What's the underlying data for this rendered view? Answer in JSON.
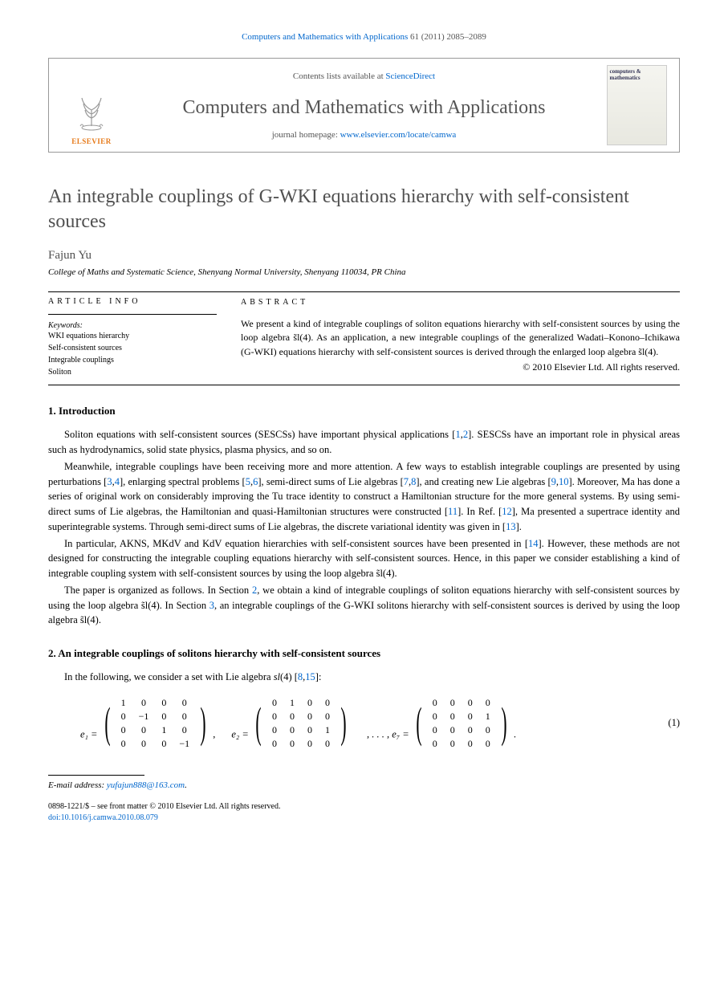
{
  "journal_ref": {
    "journal_link": "Computers and Mathematics with Applications",
    "vol_pages": "61 (2011) 2085–2089"
  },
  "header": {
    "contents_text": "Contents lists available at ",
    "contents_link": "ScienceDirect",
    "journal_title": "Computers and Mathematics with Applications",
    "homepage_text": "journal homepage: ",
    "homepage_link": "www.elsevier.com/locate/camwa",
    "elsevier": "ELSEVIER",
    "cover_title": "computers & mathematics"
  },
  "article": {
    "title": "An integrable couplings of G-WKI equations hierarchy with self-consistent sources",
    "author": "Fajun Yu",
    "affiliation": "College of Maths and Systematic Science, Shenyang Normal University, Shenyang 110034, PR China"
  },
  "info": {
    "heading": "article info",
    "keywords_label": "Keywords:",
    "keywords": [
      "WKI equations hierarchy",
      "Self-consistent sources",
      "Integrable couplings",
      "Soliton"
    ]
  },
  "abstract": {
    "heading": "abstract",
    "text": "We present a kind of integrable couplings of soliton equations hierarchy with self-consistent sources by using the loop algebra s̃l(4). As an application, a new integrable couplings of the generalized Wadati–Konono–Ichikawa (G-WKI) equations hierarchy with self-consistent sources is derived through the enlarged loop algebra s̃l(4).",
    "copyright": "© 2010 Elsevier Ltd. All rights reserved."
  },
  "sections": {
    "s1_heading": "1. Introduction",
    "s1_p1a": "Soliton equations with self-consistent sources (SESCSs) have important physical applications [",
    "s1_p1_r1": "1",
    "s1_p1b": ",",
    "s1_p1_r2": "2",
    "s1_p1c": "]. SESCSs have an important role in physical areas such as hydrodynamics, solid state physics, plasma physics, and so on.",
    "s1_p2a": "Meanwhile, integrable couplings have been receiving more and more attention. A few ways to establish integrable couplings are presented by using perturbations [",
    "s1_p2_r3": "3",
    "s1_p2b": ",",
    "s1_p2_r4": "4",
    "s1_p2c": "], enlarging spectral problems [",
    "s1_p2_r5": "5",
    "s1_p2d": ",",
    "s1_p2_r6": "6",
    "s1_p2e": "], semi-direct sums of Lie algebras [",
    "s1_p2_r7": "7",
    "s1_p2f": ",",
    "s1_p2_r8": "8",
    "s1_p2g": "], and creating new Lie algebras [",
    "s1_p2_r9": "9",
    "s1_p2h": ",",
    "s1_p2_r10": "10",
    "s1_p2i": "]. Moreover, Ma has done a series of original work on considerably improving the Tu trace identity to construct a Hamiltonian structure for the more general systems. By using semi-direct sums of Lie algebras, the Hamiltonian and quasi-Hamiltonian structures were constructed [",
    "s1_p2_r11": "11",
    "s1_p2j": "]. In Ref. [",
    "s1_p2_r12": "12",
    "s1_p2k": "], Ma presented a supertrace identity and superintegrable systems. Through semi-direct sums of Lie algebras, the discrete variational identity was given in [",
    "s1_p2_r13": "13",
    "s1_p2l": "].",
    "s1_p3a": "In particular, AKNS, MKdV and KdV equation hierarchies with self-consistent sources have been presented in [",
    "s1_p3_r14": "14",
    "s1_p3b": "]. However, these methods are not designed for constructing the integrable coupling equations hierarchy with self-consistent sources. Hence, in this paper we consider establishing a kind of integrable coupling system with self-consistent sources by using the loop algebra s̃l(4).",
    "s1_p4a": "The paper is organized as follows. In Section ",
    "s1_p4_sec2": "2",
    "s1_p4b": ", we obtain a kind of integrable couplings of soliton equations hierarchy with self-consistent sources by using the loop algebra s̃l(4). In Section ",
    "s1_p4_sec3": "3",
    "s1_p4c": ", an integrable couplings of the G-WKI solitons hierarchy with self-consistent sources is derived by using the loop algebra s̃l(4).",
    "s2_heading": "2. An integrable couplings of solitons hierarchy with self-consistent sources",
    "s2_p1a": "In the following, we consider a set with Lie algebra ",
    "s2_p1_alg": "sl",
    "s2_p1b": "(4) [",
    "s2_p1_r8": "8",
    "s2_p1c": ",",
    "s2_p1_r15": "15",
    "s2_p1d": "]:"
  },
  "equation": {
    "e1_label": "e₁ =",
    "e2_label": "e₂ =",
    "e7_label": ", . . . , e₇ =",
    "num": "(1)",
    "matrices": {
      "e1": [
        [
          "1",
          "0",
          "0",
          "0"
        ],
        [
          "0",
          "−1",
          "0",
          "0"
        ],
        [
          "0",
          "0",
          "1",
          "0"
        ],
        [
          "0",
          "0",
          "0",
          "−1"
        ]
      ],
      "e2": [
        [
          "0",
          "1",
          "0",
          "0"
        ],
        [
          "0",
          "0",
          "0",
          "0"
        ],
        [
          "0",
          "0",
          "0",
          "1"
        ],
        [
          "0",
          "0",
          "0",
          "0"
        ]
      ],
      "e7": [
        [
          "0",
          "0",
          "0",
          "0"
        ],
        [
          "0",
          "0",
          "0",
          "1"
        ],
        [
          "0",
          "0",
          "0",
          "0"
        ],
        [
          "0",
          "0",
          "0",
          "0"
        ]
      ]
    },
    "comma": ",",
    "period": "."
  },
  "footer": {
    "email_label": "E-mail address: ",
    "email": "yufajun888@163.com",
    "email_period": ".",
    "issn_line": "0898-1221/$ – see front matter © 2010 Elsevier Ltd. All rights reserved.",
    "doi_label": "doi:",
    "doi": "10.1016/j.camwa.2010.08.079"
  },
  "colors": {
    "link": "#0066cc",
    "elsevier_orange": "#e67817",
    "heading_gray": "#505050"
  }
}
